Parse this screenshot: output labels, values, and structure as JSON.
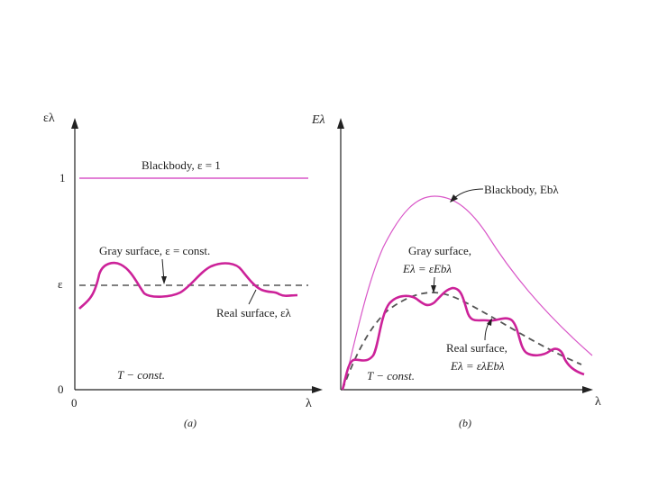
{
  "colors": {
    "blackbody": "#d957c8",
    "real": "#cc2299",
    "gray": "#555555",
    "axis": "#222222"
  },
  "panel_a": {
    "y_axis_label": "ελ",
    "x_axis_label": "λ",
    "tick_one": "1",
    "tick_eps": "ε",
    "tick_zero_y": "0",
    "tick_zero_x": "0",
    "blackbody_label": "Blackbody, ε = 1",
    "gray_label": "Gray surface, ε = const.",
    "real_label": "Real surface, ελ",
    "condition": "T − const.",
    "caption": "(a)"
  },
  "panel_b": {
    "y_axis_label": "Eλ",
    "x_axis_label": "λ",
    "blackbody_label": "Blackbody, Ebλ",
    "gray_label_line1": "Gray surface,",
    "gray_label_line2": "Eλ = εEbλ",
    "real_label_line1": "Real surface,",
    "real_label_line2": "Eλ = ελEbλ",
    "condition": "T − const.",
    "caption": "(b)"
  }
}
